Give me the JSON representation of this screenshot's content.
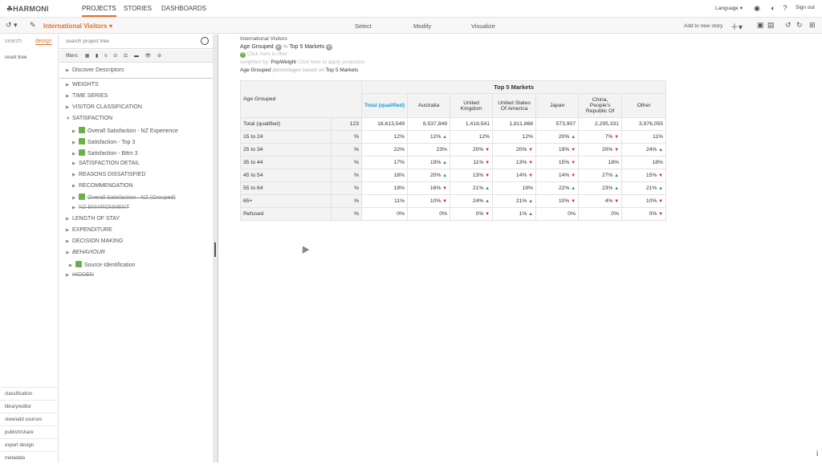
{
  "app": {
    "logo": "HARMONI"
  },
  "topnav": {
    "tabs": [
      "PROJECTS",
      "STORIES",
      "DASHBOARDS"
    ],
    "language": "Language",
    "signout": "Sign out"
  },
  "secbar": {
    "project": "International Visitors",
    "modes": [
      "Select",
      "Modify",
      "Visualize"
    ],
    "add_to_story": "Add to new story"
  },
  "left": {
    "tab_search": "search",
    "tab_design": "design",
    "reset_tree": "reset tree",
    "bottom_items": [
      "classification",
      "library/editor",
      "view/add sources",
      "publish/share",
      "export design",
      "metadata"
    ]
  },
  "tree": {
    "search_placeholder": "search project tree",
    "filters_label": "filters:",
    "nodes": [
      {
        "label": "Discover Descriptors",
        "indent": 0
      },
      {
        "label": "WEIGHTS",
        "indent": 0
      },
      {
        "label": "TIME SERIES",
        "indent": 0
      },
      {
        "label": "VISITOR CLASSIFICATION",
        "indent": 0
      },
      {
        "label": "SATISFACTION",
        "indent": 0
      },
      {
        "label": "Overall Satisfaction - NZ Experience",
        "indent": 1
      },
      {
        "label": "Satisfaction - Top 3",
        "indent": 1
      },
      {
        "label": "Satisfaction - Bttm 3",
        "indent": 1
      },
      {
        "label": "SATISFACTION DETAIL",
        "indent": 1
      },
      {
        "label": "REASONS DISSATISFIED",
        "indent": 1
      },
      {
        "label": "RECOMMENDATION",
        "indent": 1
      },
      {
        "label": "Overall Satisfaction - NZ (Grouped)",
        "indent": 1
      },
      {
        "label": "NZ ENVIRONMENT",
        "indent": 1
      },
      {
        "label": "LENGTH OF STAY",
        "indent": 0
      },
      {
        "label": "EXPENDITURE",
        "indent": 0
      },
      {
        "label": "DECISION MAKING",
        "indent": 0
      },
      {
        "label": "BEHAVIOUR",
        "indent": 0
      },
      {
        "label": "Source Identification",
        "indent": 1
      },
      {
        "label": "HIDDEN",
        "indent": 0
      }
    ]
  },
  "meta": {
    "source": "International Visitors",
    "row_var": "Age Grouped",
    "col_var": "Top 5 Markets",
    "filter_hint": "Click here to filter",
    "weighted_by_label": "weighted by:",
    "weight": "PopWeight",
    "projection_hint": "Click here to apply projection",
    "pct_text": "percentages based on",
    "pct_base": "Top 5 Markets"
  },
  "table": {
    "banner": "Top 5 Markets",
    "corner": "Age Grouped",
    "columns": [
      "Total (qualified)",
      "Australia",
      "United Kingdom",
      "United States Of America",
      "Japan",
      "China, People's Republic Of",
      "Other"
    ],
    "total_row": {
      "label": "Total (qualified)",
      "n": "123",
      "values": [
        "18,613,549",
        "8,537,849",
        "1,418,541",
        "1,811,866",
        "573,907",
        "2,295,331",
        "3,976,055"
      ]
    },
    "rows": [
      {
        "label": "15 to 24",
        "unit": "%",
        "values": [
          "12%",
          "12%",
          "12%",
          "12%",
          "20%",
          "7%",
          "11%"
        ],
        "flags": [
          "",
          "up",
          "",
          "",
          "up",
          "dn",
          ""
        ]
      },
      {
        "label": "25 to 34",
        "unit": "%",
        "values": [
          "22%",
          "23%",
          "20%",
          "20%",
          "19%",
          "20%",
          "24%"
        ],
        "flags": [
          "",
          "",
          "dn",
          "dn",
          "dn",
          "dn",
          "up"
        ]
      },
      {
        "label": "35 to 44",
        "unit": "%",
        "values": [
          "17%",
          "19%",
          "11%",
          "13%",
          "15%",
          "18%",
          "18%"
        ],
        "flags": [
          "",
          "up",
          "dn",
          "dn",
          "dn",
          "",
          ""
        ]
      },
      {
        "label": "45 to 54",
        "unit": "%",
        "values": [
          "18%",
          "20%",
          "13%",
          "14%",
          "14%",
          "27%",
          "15%"
        ],
        "flags": [
          "",
          "up",
          "dn",
          "dn",
          "dn",
          "up",
          "dn"
        ]
      },
      {
        "label": "55 to 64",
        "unit": "%",
        "values": [
          "19%",
          "16%",
          "21%",
          "19%",
          "22%",
          "23%",
          "21%"
        ],
        "flags": [
          "",
          "dn",
          "up",
          "",
          "up",
          "up",
          "up"
        ]
      },
      {
        "label": "65+",
        "unit": "%",
        "values": [
          "11%",
          "10%",
          "24%",
          "21%",
          "10%",
          "4%",
          "10%"
        ],
        "flags": [
          "",
          "dn",
          "up",
          "up",
          "dn",
          "dn",
          "dn"
        ]
      },
      {
        "label": "Refused",
        "unit": "%",
        "values": [
          "0%",
          "0%",
          "0%",
          "1%",
          "0%",
          "0%",
          "0%"
        ],
        "flags": [
          "",
          "",
          "dn",
          "up",
          "",
          "",
          "dn"
        ]
      }
    ]
  },
  "colors": {
    "accent": "#e8702a",
    "up": "#2e9a3a",
    "down": "#d9242b",
    "total": "#1a9bd7"
  }
}
